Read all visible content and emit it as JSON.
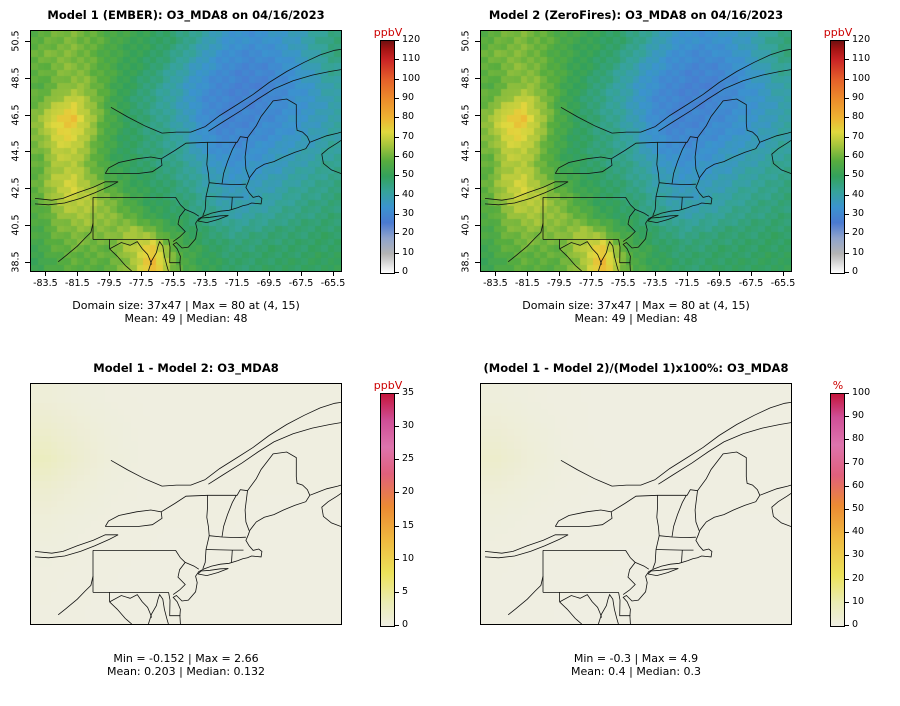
{
  "figure": {
    "background": "#ffffff",
    "text_color": "#000000",
    "colorbar_label_color": "#cc0000",
    "boundary_color": "#111111"
  },
  "chart_data": [
    {
      "type": "heatmap",
      "title": "Model 1 (EMBER): O3_MDA8 on 04/16/2023",
      "show_axes": true,
      "extent": {
        "lon": [
          -84.4,
          -65.0
        ],
        "lat": [
          38.0,
          51.05
        ]
      },
      "raster": {
        "cols": 47,
        "rows": 37
      },
      "x": {
        "ticks": [
          -83.5,
          -81.5,
          -79.5,
          -77.5,
          -75.5,
          -73.5,
          -71.5,
          -69.5,
          -67.5,
          -65.5
        ]
      },
      "y": {
        "ticks": [
          38.5,
          40.5,
          42.5,
          44.5,
          46.5,
          48.5,
          50.5
        ]
      },
      "colorbar": {
        "label": "ppbV",
        "min": 0,
        "max": 120,
        "ticks": [
          0,
          10,
          20,
          30,
          40,
          50,
          60,
          70,
          80,
          90,
          100,
          110,
          120
        ],
        "stops": [
          [
            0,
            "#ffffff"
          ],
          [
            10,
            "#b4b4b4"
          ],
          [
            18,
            "#8fa3cc"
          ],
          [
            26,
            "#4a7ad1"
          ],
          [
            34,
            "#3b93cf"
          ],
          [
            42,
            "#36a39b"
          ],
          [
            50,
            "#33a15c"
          ],
          [
            58,
            "#58ad3e"
          ],
          [
            66,
            "#a6c53c"
          ],
          [
            73,
            "#e0d83e"
          ],
          [
            80,
            "#eeb332"
          ],
          [
            90,
            "#ec8c2b"
          ],
          [
            100,
            "#e4602a"
          ],
          [
            110,
            "#cb2525"
          ],
          [
            116,
            "#a31313"
          ],
          [
            120,
            "#701010"
          ]
        ]
      },
      "stats_line1": "Domain size: 37x47 | Max = 80 at (4, 15)",
      "stats_line2": "Mean: 49 | Median: 48",
      "noise": 2,
      "grid_note": "approximate O3 MDA8 values (ppbV); 19 cols west-to-east x 15 rows north-to-south",
      "grid": [
        [
          58,
          60,
          62,
          60,
          57,
          54,
          52,
          50,
          48,
          45,
          41,
          37,
          34,
          33,
          34,
          36,
          38,
          42,
          46
        ],
        [
          60,
          62,
          62,
          60,
          56,
          53,
          51,
          49,
          46,
          42,
          38,
          34,
          32,
          31,
          32,
          34,
          37,
          41,
          45
        ],
        [
          58,
          61,
          63,
          61,
          57,
          53,
          50,
          47,
          43,
          39,
          35,
          32,
          30,
          29,
          30,
          32,
          35,
          39,
          43
        ],
        [
          57,
          60,
          64,
          63,
          57,
          52,
          48,
          45,
          41,
          37,
          33,
          30,
          29,
          28,
          29,
          31,
          34,
          37,
          41
        ],
        [
          60,
          66,
          72,
          66,
          57,
          51,
          47,
          44,
          41,
          37,
          32,
          30,
          29,
          29,
          30,
          32,
          34,
          36,
          40
        ],
        [
          64,
          74,
          78,
          68,
          58,
          52,
          48,
          45,
          42,
          38,
          33,
          30,
          29,
          30,
          31,
          33,
          35,
          37,
          40
        ],
        [
          62,
          72,
          74,
          66,
          56,
          51,
          48,
          46,
          43,
          39,
          34,
          31,
          30,
          31,
          32,
          34,
          36,
          38,
          41
        ],
        [
          60,
          68,
          70,
          63,
          55,
          50,
          48,
          46,
          44,
          41,
          36,
          33,
          32,
          33,
          35,
          37,
          38,
          40,
          42
        ],
        [
          58,
          66,
          68,
          62,
          55,
          51,
          49,
          47,
          45,
          43,
          39,
          36,
          34,
          35,
          36,
          38,
          40,
          42,
          44
        ],
        [
          60,
          68,
          72,
          66,
          58,
          54,
          51,
          49,
          47,
          44,
          41,
          38,
          36,
          37,
          38,
          40,
          42,
          43,
          45
        ],
        [
          58,
          66,
          70,
          68,
          63,
          58,
          53,
          50,
          48,
          46,
          43,
          40,
          38,
          39,
          40,
          42,
          44,
          45,
          46
        ],
        [
          56,
          62,
          66,
          66,
          64,
          61,
          56,
          52,
          50,
          48,
          45,
          42,
          40,
          41,
          42,
          44,
          45,
          46,
          47
        ],
        [
          55,
          60,
          62,
          63,
          62,
          64,
          66,
          60,
          54,
          51,
          48,
          46,
          44,
          45,
          46,
          47,
          47,
          48,
          48
        ],
        [
          54,
          58,
          60,
          60,
          59,
          63,
          70,
          76,
          60,
          54,
          51,
          48,
          47,
          47,
          48,
          48,
          48,
          49,
          49
        ],
        [
          52,
          56,
          58,
          58,
          58,
          61,
          68,
          80,
          64,
          55,
          52,
          50,
          48,
          48,
          49,
          49,
          49,
          50,
          50
        ]
      ]
    },
    {
      "type": "heatmap",
      "title": "Model 2 (ZeroFires): O3_MDA8 on 04/16/2023",
      "show_axes": true,
      "extent": {
        "lon": [
          -84.4,
          -65.0
        ],
        "lat": [
          38.0,
          51.05
        ]
      },
      "raster": {
        "cols": 47,
        "rows": 37
      },
      "x": {
        "ticks": [
          -83.5,
          -81.5,
          -79.5,
          -77.5,
          -75.5,
          -73.5,
          -71.5,
          -69.5,
          -67.5,
          -65.5
        ]
      },
      "y": {
        "ticks": [
          38.5,
          40.5,
          42.5,
          44.5,
          46.5,
          48.5,
          50.5
        ]
      },
      "colorbar": {
        "label": "ppbV",
        "min": 0,
        "max": 120,
        "ticks": [
          0,
          10,
          20,
          30,
          40,
          50,
          60,
          70,
          80,
          90,
          100,
          110,
          120
        ],
        "stops": [
          [
            0,
            "#ffffff"
          ],
          [
            10,
            "#b4b4b4"
          ],
          [
            18,
            "#8fa3cc"
          ],
          [
            26,
            "#4a7ad1"
          ],
          [
            34,
            "#3b93cf"
          ],
          [
            42,
            "#36a39b"
          ],
          [
            50,
            "#33a15c"
          ],
          [
            58,
            "#58ad3e"
          ],
          [
            66,
            "#a6c53c"
          ],
          [
            73,
            "#e0d83e"
          ],
          [
            80,
            "#eeb332"
          ],
          [
            90,
            "#ec8c2b"
          ],
          [
            100,
            "#e4602a"
          ],
          [
            110,
            "#cb2525"
          ],
          [
            116,
            "#a31313"
          ],
          [
            120,
            "#701010"
          ]
        ]
      },
      "stats_line1": "Domain size: 37x47 | Max = 80 at (4, 15)",
      "stats_line2": "Mean: 49 | Median: 48",
      "noise": 2,
      "grid_note": "field visually identical to Model 1 at this color scale",
      "grid_same_as": 0
    },
    {
      "type": "heatmap",
      "title": "Model 1 - Model 2: O3_MDA8",
      "show_axes": false,
      "extent": {
        "lon": [
          -84.4,
          -65.0
        ],
        "lat": [
          38.0,
          51.05
        ]
      },
      "raster": {
        "cols": 47,
        "rows": 37
      },
      "colorbar": {
        "label": "ppbV",
        "min": 0,
        "max": 35,
        "ticks": [
          0,
          5,
          10,
          15,
          20,
          25,
          30,
          35
        ],
        "stops": [
          [
            0,
            "#efeee3"
          ],
          [
            3.5,
            "#eaecb4"
          ],
          [
            8,
            "#ece25a"
          ],
          [
            13,
            "#efb93f"
          ],
          [
            18,
            "#ec8a33"
          ],
          [
            23,
            "#e0607c"
          ],
          [
            27,
            "#dd74ad"
          ],
          [
            31,
            "#cf4f96"
          ],
          [
            35,
            "#c4163c"
          ]
        ]
      },
      "stats_line1": "Min = -0.152 | Max = 2.66",
      "stats_line2": "Mean: 0.203 | Median: 0.132",
      "noise": 0,
      "grid_note": "difference field (ppbV), near zero everywhere; 10 cols x 8 rows",
      "grid": [
        [
          0.8,
          0.5,
          0.3,
          0.25,
          0.2,
          0.2,
          0.2,
          0.2,
          0.2,
          0.2
        ],
        [
          1.6,
          1.0,
          0.5,
          0.3,
          0.2,
          0.2,
          0.2,
          0.2,
          0.2,
          0.2
        ],
        [
          2.6,
          1.4,
          0.6,
          0.3,
          0.2,
          0.2,
          0.2,
          0.2,
          0.2,
          0.2
        ],
        [
          1.4,
          0.8,
          0.4,
          0.25,
          0.2,
          0.2,
          0.2,
          0.2,
          0.2,
          0.2
        ],
        [
          0.7,
          0.4,
          0.3,
          0.2,
          0.2,
          0.2,
          0.2,
          0.15,
          0.15,
          0.15
        ],
        [
          0.4,
          0.3,
          0.2,
          0.2,
          0.15,
          0.15,
          0.15,
          0.15,
          0.15,
          0.15
        ],
        [
          0.3,
          0.2,
          0.2,
          0.15,
          0.15,
          0.15,
          0.15,
          0.15,
          0.15,
          0.15
        ],
        [
          0.25,
          0.2,
          0.15,
          0.15,
          0.15,
          0.15,
          0.15,
          0.15,
          0.15,
          0.15
        ]
      ]
    },
    {
      "type": "heatmap",
      "title": "(Model 1 - Model 2)/(Model 1)x100%: O3_MDA8",
      "show_axes": false,
      "extent": {
        "lon": [
          -84.4,
          -65.0
        ],
        "lat": [
          38.0,
          51.05
        ]
      },
      "raster": {
        "cols": 47,
        "rows": 37
      },
      "colorbar": {
        "label": "%",
        "min": 0,
        "max": 100,
        "ticks": [
          0,
          10,
          20,
          30,
          40,
          50,
          60,
          70,
          80,
          90,
          100
        ],
        "stops": [
          [
            0,
            "#efeee3"
          ],
          [
            10,
            "#eaecb4"
          ],
          [
            22,
            "#ece25a"
          ],
          [
            38,
            "#efb93f"
          ],
          [
            52,
            "#ec8a33"
          ],
          [
            65,
            "#e0607c"
          ],
          [
            78,
            "#dd74ad"
          ],
          [
            90,
            "#cf4f96"
          ],
          [
            100,
            "#c4163c"
          ]
        ]
      },
      "stats_line1": "Min = -0.3 | Max = 4.9",
      "stats_line2": "Mean: 0.4 | Median: 0.3",
      "noise": 0,
      "grid_note": "percent difference field, near zero everywhere; 10 cols x 8 rows",
      "grid": [
        [
          1.5,
          1.0,
          0.6,
          0.5,
          0.4,
          0.4,
          0.4,
          0.4,
          0.4,
          0.4
        ],
        [
          3.0,
          1.8,
          0.9,
          0.5,
          0.4,
          0.4,
          0.4,
          0.4,
          0.4,
          0.4
        ],
        [
          4.9,
          2.6,
          1.1,
          0.6,
          0.4,
          0.4,
          0.4,
          0.4,
          0.4,
          0.4
        ],
        [
          2.6,
          1.5,
          0.8,
          0.5,
          0.4,
          0.4,
          0.4,
          0.4,
          0.4,
          0.4
        ],
        [
          1.3,
          0.8,
          0.5,
          0.4,
          0.4,
          0.4,
          0.3,
          0.3,
          0.3,
          0.3
        ],
        [
          0.8,
          0.5,
          0.4,
          0.4,
          0.3,
          0.3,
          0.3,
          0.3,
          0.3,
          0.3
        ],
        [
          0.5,
          0.4,
          0.4,
          0.3,
          0.3,
          0.3,
          0.3,
          0.3,
          0.3,
          0.3
        ],
        [
          0.4,
          0.4,
          0.3,
          0.3,
          0.3,
          0.3,
          0.3,
          0.3,
          0.3,
          0.3
        ]
      ]
    }
  ]
}
